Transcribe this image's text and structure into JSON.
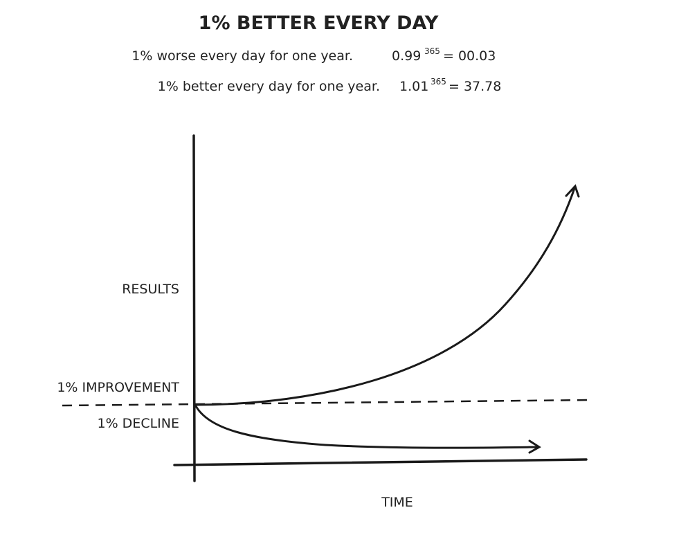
{
  "title": "1% BETTER EVERY DAY",
  "lines": [
    {
      "text": "1% worse every day for one year.",
      "base": "0.99",
      "exponent": "365",
      "result": "= 00.03"
    },
    {
      "text": "1% better every day for one year.",
      "base": "1.01",
      "exponent": "365",
      "result": "= 37.78"
    }
  ],
  "labels": {
    "y_axis": "RESULTS",
    "improvement": "1% IMPROVEMENT",
    "decline": "1% DECLINE",
    "x_axis": "TIME"
  }
}
